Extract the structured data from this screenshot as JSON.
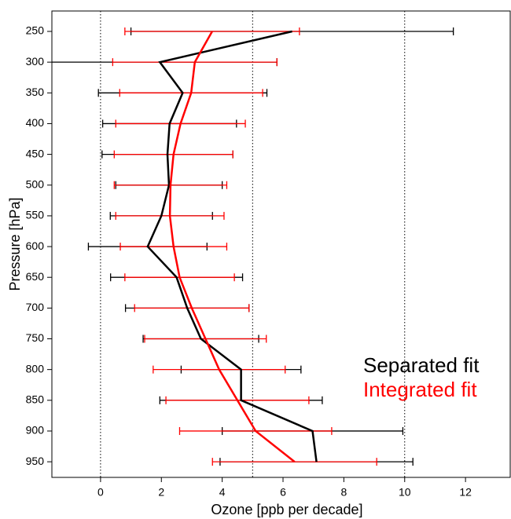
{
  "chart_data": {
    "type": "line",
    "x_label": "Ozone [ppb per decade]",
    "y_label": "Pressure [hPa]",
    "y": [
      250,
      300,
      350,
      400,
      450,
      500,
      550,
      600,
      650,
      700,
      750,
      800,
      850,
      900,
      950
    ],
    "xlim": [
      -1.6,
      13.47
    ],
    "ylim": [
      975.4,
      216.8
    ],
    "xticks": [
      0,
      2,
      4,
      6,
      8,
      10,
      12
    ],
    "yticks": [
      250,
      300,
      350,
      400,
      450,
      500,
      550,
      600,
      650,
      700,
      750,
      800,
      850,
      900,
      950
    ],
    "vlines": [
      0,
      5,
      10
    ],
    "legend": "lower right",
    "series": [
      {
        "name": "Separated fit",
        "color": "#000000",
        "values": [
          6.3,
          1.95,
          2.7,
          2.27,
          2.2,
          2.25,
          2.0,
          1.55,
          2.5,
          2.85,
          3.3,
          4.62,
          4.62,
          6.97,
          7.1
        ],
        "errors": [
          5.3,
          3.85,
          2.77,
          2.2,
          2.15,
          1.75,
          1.68,
          1.95,
          2.17,
          2.03,
          1.9,
          1.97,
          2.67,
          2.97,
          3.17
        ]
      },
      {
        "name": "Integrated fit",
        "color": "#ff0000",
        "values": [
          3.67,
          3.1,
          2.98,
          2.63,
          2.4,
          2.3,
          2.28,
          2.4,
          2.6,
          3.0,
          3.45,
          3.9,
          4.5,
          5.1,
          6.38
        ],
        "errors": [
          2.87,
          2.7,
          2.35,
          2.13,
          1.95,
          1.85,
          1.78,
          1.75,
          1.8,
          1.88,
          2.0,
          2.17,
          2.35,
          2.5,
          2.7
        ]
      }
    ]
  }
}
